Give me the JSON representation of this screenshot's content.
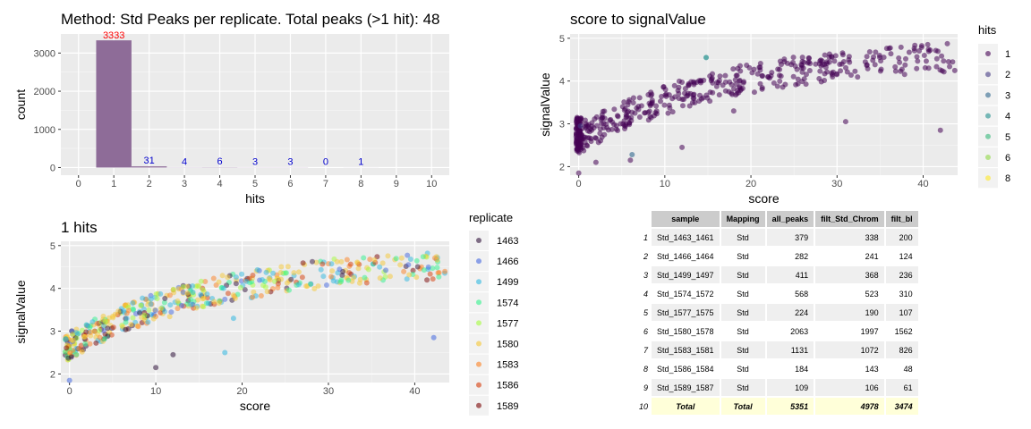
{
  "chart_data": [
    {
      "type": "bar",
      "title": "Method: Std Peaks per replicate. Total peaks (>1 hit): 48",
      "xlabel": "hits",
      "ylabel": "count",
      "categories": [
        1,
        2,
        3,
        4,
        5,
        6,
        7,
        8
      ],
      "values": [
        3333,
        31,
        4,
        6,
        3,
        3,
        0,
        1
      ],
      "data_labels": [
        "3333",
        "31",
        "4",
        "6",
        "3",
        "3",
        "0",
        "1"
      ],
      "xlim": [
        0,
        10
      ],
      "ylim": [
        0,
        3500
      ],
      "x_ticks": [
        "0",
        "1",
        "2",
        "3",
        "4",
        "5",
        "6",
        "7",
        "8",
        "9",
        "10"
      ],
      "y_ticks": [
        "0",
        "1000",
        "2000",
        "3000"
      ],
      "bar_color": "#8e6c98",
      "label_colors": {
        "first": "#ff0000",
        "rest": "#0000cc"
      },
      "grid": true
    },
    {
      "type": "scatter",
      "title": "score to signalValue",
      "xlabel": "score",
      "ylabel": "signalValue",
      "xlim": [
        -1,
        44
      ],
      "ylim": [
        1.8,
        5.1
      ],
      "x_ticks": [
        "0",
        "10",
        "20",
        "30",
        "40"
      ],
      "y_ticks": [
        "2",
        "3",
        "4",
        "5"
      ],
      "legend_title": "hits",
      "legend_position": "right",
      "legend": [
        {
          "label": "1",
          "color": "#440154"
        },
        {
          "label": "2",
          "color": "#443a83"
        },
        {
          "label": "3",
          "color": "#31688e"
        },
        {
          "label": "4",
          "color": "#21908d"
        },
        {
          "label": "5",
          "color": "#35b779"
        },
        {
          "label": "6",
          "color": "#8fd744"
        },
        {
          "label": "8",
          "color": "#fde725"
        }
      ],
      "grid": true
    },
    {
      "type": "scatter",
      "title": "1 hits",
      "xlabel": "score",
      "ylabel": "signalValue",
      "xlim": [
        -1,
        44
      ],
      "ylim": [
        1.8,
        5.1
      ],
      "x_ticks": [
        "0",
        "10",
        "20",
        "30",
        "40"
      ],
      "y_ticks": [
        "2",
        "3",
        "4",
        "5"
      ],
      "legend_title": "replicate",
      "legend_position": "right",
      "legend": [
        {
          "label": "1463",
          "color": "#30123b"
        },
        {
          "label": "1466",
          "color": "#4468e0"
        },
        {
          "label": "1499",
          "color": "#2fb7e0"
        },
        {
          "label": "1574",
          "color": "#2ef28b"
        },
        {
          "label": "1577",
          "color": "#a4fc3c"
        },
        {
          "label": "1580",
          "color": "#f5c733"
        },
        {
          "label": "1583",
          "color": "#fb8022"
        },
        {
          "label": "1586",
          "color": "#d63b08"
        },
        {
          "label": "1589",
          "color": "#7a0403"
        }
      ],
      "grid": true
    },
    {
      "type": "table",
      "columns": [
        "sample",
        "Mapping",
        "all_peaks",
        "filt_Std_Chrom",
        "filt_bl"
      ],
      "rows": [
        [
          "1",
          "Std_1463_1461",
          "Std",
          "379",
          "338",
          "200"
        ],
        [
          "2",
          "Std_1466_1464",
          "Std",
          "282",
          "241",
          "124"
        ],
        [
          "3",
          "Std_1499_1497",
          "Std",
          "411",
          "368",
          "236"
        ],
        [
          "4",
          "Std_1574_1572",
          "Std",
          "568",
          "523",
          "310"
        ],
        [
          "5",
          "Std_1577_1575",
          "Std",
          "224",
          "190",
          "107"
        ],
        [
          "6",
          "Std_1580_1578",
          "Std",
          "2063",
          "1997",
          "1562"
        ],
        [
          "7",
          "Std_1583_1581",
          "Std",
          "1131",
          "1072",
          "826"
        ],
        [
          "8",
          "Std_1586_1584",
          "Std",
          "184",
          "143",
          "48"
        ],
        [
          "9",
          "Std_1589_1587",
          "Std",
          "109",
          "106",
          "61"
        ]
      ],
      "total_row": [
        "10",
        "Total",
        "Total",
        "5351",
        "4978",
        "3474"
      ]
    }
  ]
}
